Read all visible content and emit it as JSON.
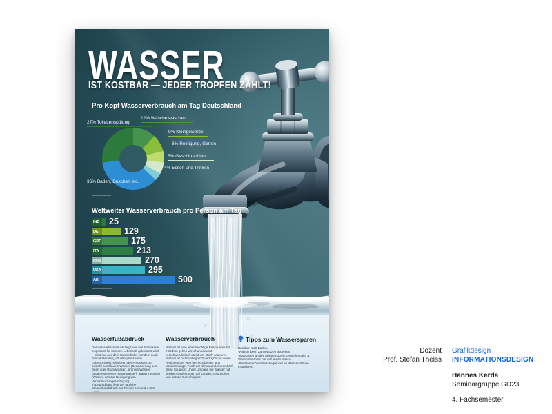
{
  "poster": {
    "title": "WASSER",
    "subtitle": "IST KOSTBAR — JEDER TROPFEN ZÄHLT!",
    "colors": {
      "background_teal": "#2f5a64",
      "water_area": "#dcebf4",
      "text": "#ffffff"
    }
  },
  "chart_data": [
    {
      "type": "pie",
      "donut": true,
      "title": "Pro Kopf Wasserverbrauch am Tag Deutschland",
      "unit": "%",
      "start_angle_deg": 0,
      "legend_position": "callout-labels",
      "slices": [
        {
          "label": "Wäsche waschen",
          "value": 12,
          "color": "#45934c"
        },
        {
          "label": "Kleingewerbe",
          "value": 9,
          "color": "#8abd3c"
        },
        {
          "label": "Reinigung, Garten",
          "value": 6,
          "color": "#bfdb69"
        },
        {
          "label": "Geschirrspülen",
          "value": 6,
          "color": "#d3e7cc"
        },
        {
          "label": "Essen und Trinken",
          "value": 4,
          "color": "#7fcdd6"
        },
        {
          "label": "Baden, Duschen etc.",
          "value": 36,
          "color": "#2d8ed5"
        },
        {
          "label": "Toilettenspülung",
          "value": 27,
          "color": "#2c7b3c"
        }
      ]
    },
    {
      "type": "bar",
      "orientation": "horizontal",
      "title": "Weltweiter Wasserverbrauch pro Person am Tag",
      "categories": [
        "IND",
        "DE",
        "GRC",
        "ITA",
        "RUS",
        "USA",
        "AE"
      ],
      "values": [
        25,
        129,
        175,
        213,
        270,
        295,
        500
      ],
      "colors": [
        "#2b7840",
        "#8db832",
        "#44934e",
        "#2d7d45",
        "#a8dbc9",
        "#38b3c8",
        "#2c7fd2"
      ],
      "xlim": [
        0,
        500
      ],
      "value_labels": true,
      "grid": false
    }
  ],
  "info_columns": [
    {
      "title": "Wasserfußabdruck",
      "body": "Der Wasserfußabdruck zeigt, wie viel Süßwasser insgesamt für unseren Lebensstil gebraucht wird – nicht nur aus dem Wasserhahn, sondern auch das versteckte („virtuelle“) Wasser in Lebensmitteln, Kleidung oder Produkten. Er besteht aus blauem Wasser (Bewässerung aus Seen oder Grundwasser), grünem Wasser (aufgenommenes Regenwasser), grauem Wasser (Wasser, das zur Reinigung von Verschmutzungen nötig ist).\nIn Deutschland liegt der tägliche Wasserfußabdruck pro Person bei rund 4.000 Litern."
    },
    {
      "title": "Wasserverbrauch",
      "body": "Wasser ist eine lebenswichtige Ressource und trotzdem gehen wir oft unbewusst verschwenderisch damit um. Doch sauberes Wasser ist nicht unbegrenzt verfügbar; in vielen Regionen der Welt herrscht bereits jetzt Wassermangel. Auch der Klimawandel verschärft diese Situation. Unser Umgang mit Wasser hat direkte Auswirkungen auf Umwelt, Gesundheit und soziale Gerechtigkeit."
    },
    {
      "title": "Tipps zum Wassersparen",
      "icon": "lightbulb-icon",
      "icon_color": "#2b6fd4",
      "bullets": [
        "Duschen statt Baden.",
        "-Wasser beim Zähneputzen abdrehen.",
        "-Spartasten an der Toilette nutzen. Geschirrspüler & Waschmaschine nur voll laufen lassen.",
        "-Perlatoren/Durchflussbegrenzer an Wasserhähnen installieren."
      ]
    }
  ],
  "attribution": {
    "role_label": "Dozent",
    "lecturer": "Prof. Stefan Theiss",
    "program": "Grafikdesign",
    "program_title": "INFORMATIONSDESIGN",
    "student": "Hannes Kerda",
    "group": "Seminargruppe GD23",
    "semester": "4. Fachsemester",
    "accent_color": "#1565d8"
  }
}
